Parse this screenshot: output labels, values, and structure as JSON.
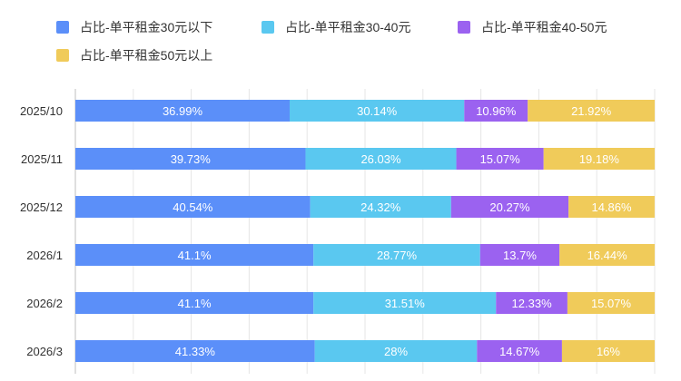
{
  "chart_data": {
    "type": "bar",
    "orientation": "horizontal",
    "stacked": true,
    "percent": true,
    "title": "",
    "xlabel": "",
    "ylabel": "",
    "xlim": [
      0,
      100
    ],
    "grid": true,
    "legend_position": "top-left",
    "categories": [
      "2025/10",
      "2025/11",
      "2025/12",
      "2026/1",
      "2026/2",
      "2026/3"
    ],
    "series": [
      {
        "name": "占比-单平租金30元以下",
        "color": "#5b8ff9",
        "values": [
          36.99,
          39.73,
          40.54,
          41.1,
          41.1,
          41.33
        ],
        "labels": [
          "36.99%",
          "39.73%",
          "40.54%",
          "41.1%",
          "41.1%",
          "41.33%"
        ]
      },
      {
        "name": "占比-单平租金30-40元",
        "color": "#5ac8f0",
        "values": [
          30.14,
          26.03,
          24.32,
          28.77,
          31.51,
          28
        ],
        "labels": [
          "30.14%",
          "26.03%",
          "24.32%",
          "28.77%",
          "31.51%",
          "28%"
        ]
      },
      {
        "name": "占比-单平租金40-50元",
        "color": "#9b62f0",
        "values": [
          10.96,
          15.07,
          20.27,
          13.7,
          12.33,
          14.67
        ],
        "labels": [
          "10.96%",
          "15.07%",
          "20.27%",
          "13.7%",
          "12.33%",
          "14.67%"
        ]
      },
      {
        "name": "占比-单平租金50元以上",
        "color": "#f0cb5a",
        "values": [
          21.92,
          19.18,
          14.86,
          16.44,
          15.07,
          16
        ],
        "labels": [
          "21.92%",
          "19.18%",
          "14.86%",
          "16.44%",
          "15.07%",
          "16%"
        ]
      }
    ]
  }
}
